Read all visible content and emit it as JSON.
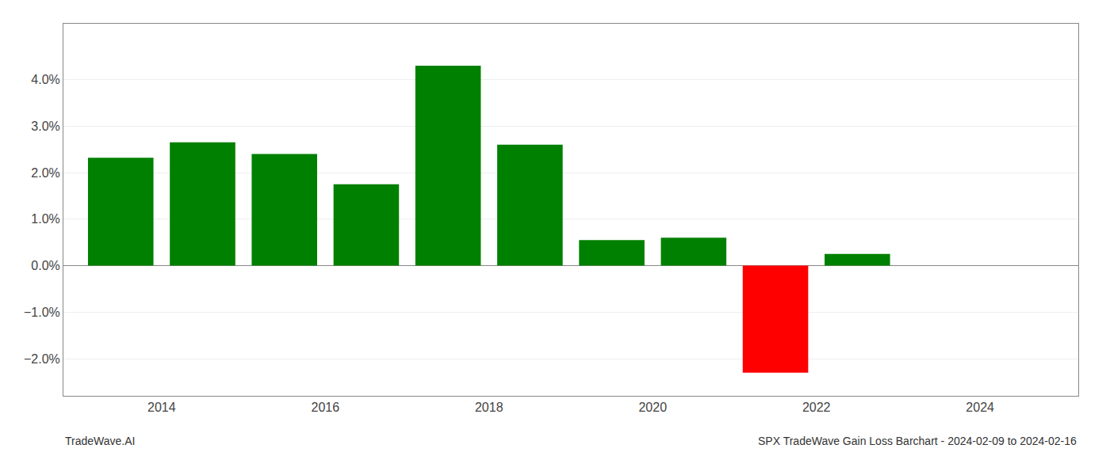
{
  "chart_data": {
    "type": "bar",
    "title": "SPX TradeWave Gain Loss Barchart - 2024-02-09 to 2024-02-16",
    "annotations": [
      "TradeWave.AI"
    ],
    "x": [
      2013.5,
      2014.5,
      2015.5,
      2016.5,
      2017.5,
      2018.5,
      2019.5,
      2020.5,
      2021.5,
      2022.5
    ],
    "values": [
      0.0232,
      0.0265,
      0.024,
      0.0175,
      0.043,
      0.026,
      0.0055,
      0.006,
      -0.023,
      0.0025
    ],
    "colors": [
      "#008000",
      "#008000",
      "#008000",
      "#008000",
      "#008000",
      "#008000",
      "#008000",
      "#008000",
      "#ff0000",
      "#008000"
    ],
    "xlim": [
      2012.8,
      2025.2
    ],
    "xticks": [
      2014,
      2016,
      2018,
      2020,
      2022,
      2024
    ],
    "ylim": [
      -0.028,
      0.052
    ],
    "yticks": [
      {
        "value": -0.02,
        "label": "−2.0%"
      },
      {
        "value": -0.01,
        "label": "−1.0%"
      },
      {
        "value": 0.0,
        "label": "0.0%"
      },
      {
        "value": 0.01,
        "label": "1.0%"
      },
      {
        "value": 0.02,
        "label": "2.0%"
      },
      {
        "value": 0.03,
        "label": "3.0%"
      },
      {
        "value": 0.04,
        "label": "4.0%"
      }
    ],
    "grid": true
  }
}
